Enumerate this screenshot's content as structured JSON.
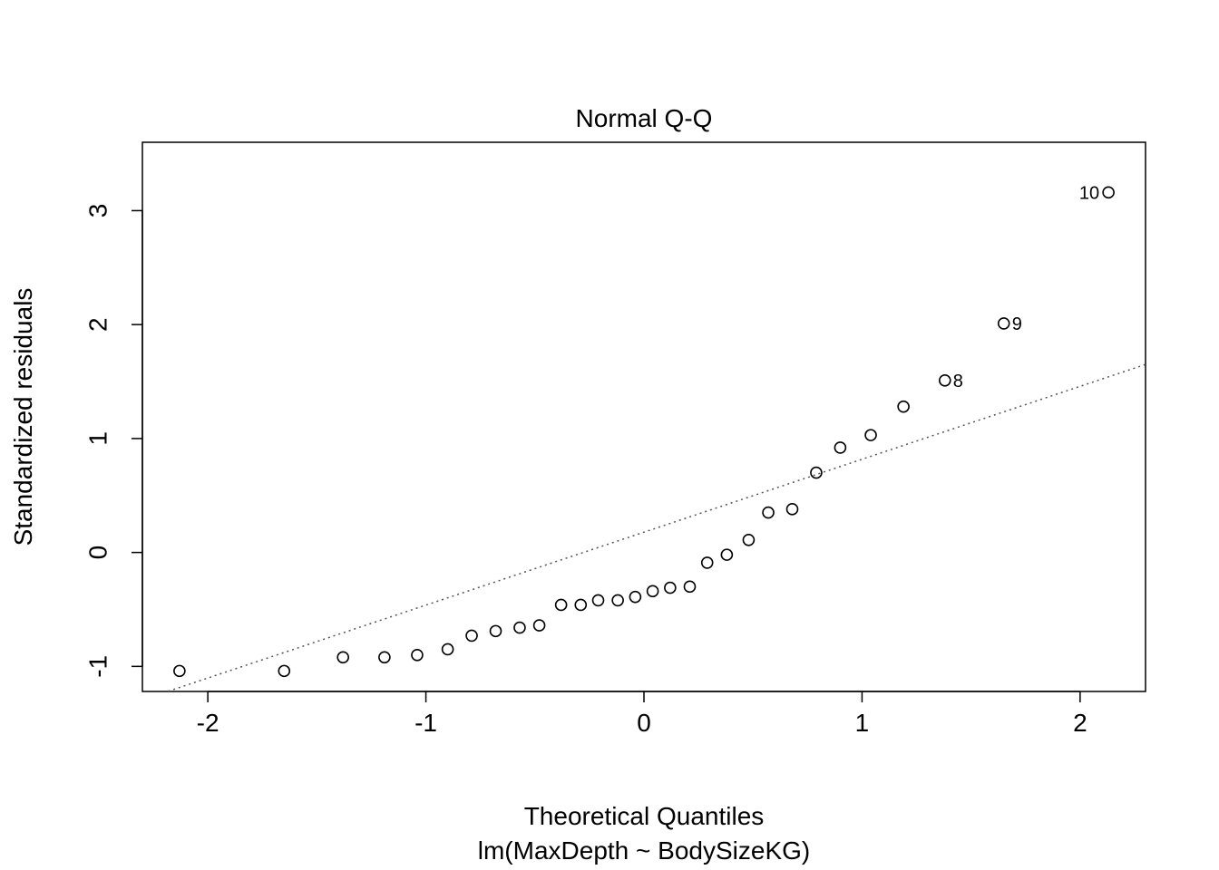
{
  "chart_data": {
    "type": "scatter",
    "title": "Normal Q-Q",
    "xlabel": "Theoretical Quantiles",
    "subtitle": "lm(MaxDepth ~ BodySizeKG)",
    "ylabel": "Standardized residuals",
    "xlim": [
      -2.3,
      2.3
    ],
    "ylim": [
      -1.22,
      3.6
    ],
    "x_ticks": [
      -2,
      -1,
      0,
      1,
      2
    ],
    "y_ticks": [
      -1,
      0,
      1,
      2,
      3
    ],
    "grid": false,
    "reference_line": {
      "style": "dotted",
      "color": "#555555",
      "intercept": 0.178,
      "slope": 0.64
    },
    "points": [
      {
        "x": -2.13,
        "y": -1.04
      },
      {
        "x": -1.65,
        "y": -1.04
      },
      {
        "x": -1.38,
        "y": -0.92
      },
      {
        "x": -1.19,
        "y": -0.92
      },
      {
        "x": -1.04,
        "y": -0.9
      },
      {
        "x": -0.9,
        "y": -0.85
      },
      {
        "x": -0.79,
        "y": -0.73
      },
      {
        "x": -0.68,
        "y": -0.69
      },
      {
        "x": -0.57,
        "y": -0.66
      },
      {
        "x": -0.48,
        "y": -0.64
      },
      {
        "x": -0.38,
        "y": -0.46
      },
      {
        "x": -0.29,
        "y": -0.46
      },
      {
        "x": -0.21,
        "y": -0.42
      },
      {
        "x": -0.12,
        "y": -0.42
      },
      {
        "x": -0.04,
        "y": -0.39
      },
      {
        "x": 0.04,
        "y": -0.34
      },
      {
        "x": 0.12,
        "y": -0.31
      },
      {
        "x": 0.21,
        "y": -0.3
      },
      {
        "x": 0.29,
        "y": -0.09
      },
      {
        "x": 0.38,
        "y": -0.02
      },
      {
        "x": 0.48,
        "y": 0.11
      },
      {
        "x": 0.57,
        "y": 0.35
      },
      {
        "x": 0.68,
        "y": 0.38
      },
      {
        "x": 0.79,
        "y": 0.7
      },
      {
        "x": 0.9,
        "y": 0.92
      },
      {
        "x": 1.04,
        "y": 1.03
      },
      {
        "x": 1.19,
        "y": 1.28
      },
      {
        "x": 1.38,
        "y": 1.51,
        "label": "8"
      },
      {
        "x": 1.65,
        "y": 2.01,
        "label": "9"
      },
      {
        "x": 2.13,
        "y": 3.16,
        "label": "10"
      }
    ]
  }
}
